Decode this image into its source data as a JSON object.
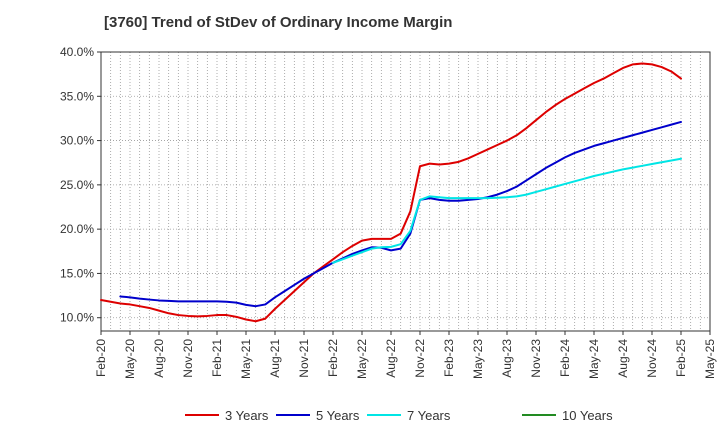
{
  "chart_data": {
    "type": "line",
    "title": "[3760]  Trend of StDev of Ordinary Income Margin",
    "xlabel": "",
    "ylabel": "",
    "ylim": [
      8.5,
      40.0
    ],
    "y_ticks": [
      "10.0%",
      "15.0%",
      "20.0%",
      "25.0%",
      "30.0%",
      "35.0%",
      "40.0%"
    ],
    "y_tick_values": [
      10,
      15,
      20,
      25,
      30,
      35,
      40
    ],
    "x_ticks": [
      "Feb-20",
      "May-20",
      "Aug-20",
      "Nov-20",
      "Feb-21",
      "May-21",
      "Aug-21",
      "Nov-21",
      "Feb-22",
      "May-22",
      "Aug-22",
      "Nov-22",
      "Feb-23",
      "May-23",
      "Aug-23",
      "Nov-23",
      "Feb-24",
      "May-24",
      "Aug-24",
      "Nov-24",
      "Feb-25",
      "May-25"
    ],
    "grid": true,
    "legend_position": "bottom",
    "series": [
      {
        "name": "3 Years",
        "color": "#dd0000",
        "x": [
          "Feb-20",
          "Mar-20",
          "Apr-20",
          "May-20",
          "Jun-20",
          "Jul-20",
          "Aug-20",
          "Sep-20",
          "Oct-20",
          "Nov-20",
          "Dec-20",
          "Jan-21",
          "Feb-21",
          "Mar-21",
          "Apr-21",
          "May-21",
          "Jun-21",
          "Jul-21",
          "Aug-21",
          "Sep-21",
          "Oct-21",
          "Nov-21",
          "Dec-21",
          "Jan-22",
          "Feb-22",
          "Mar-22",
          "Apr-22",
          "May-22",
          "Jun-22",
          "Jul-22",
          "Aug-22",
          "Sep-22",
          "Oct-22",
          "Nov-22",
          "Dec-22",
          "Jan-23",
          "Feb-23",
          "Mar-23",
          "Apr-23",
          "May-23",
          "Jun-23",
          "Jul-23",
          "Aug-23",
          "Sep-23",
          "Oct-23",
          "Nov-23",
          "Dec-23",
          "Jan-24",
          "Feb-24",
          "Mar-24",
          "Apr-24",
          "May-24",
          "Jun-24",
          "Jul-24",
          "Aug-24",
          "Sep-24",
          "Oct-24",
          "Nov-24",
          "Dec-24",
          "Jan-25",
          "Feb-25"
        ],
        "values": [
          12.0,
          11.8,
          11.6,
          11.5,
          11.3,
          11.1,
          10.8,
          10.5,
          10.3,
          10.2,
          10.15,
          10.2,
          10.3,
          10.3,
          10.1,
          9.8,
          9.6,
          9.9,
          11.0,
          12.0,
          13.0,
          14.0,
          15.0,
          15.8,
          16.6,
          17.4,
          18.1,
          18.7,
          18.9,
          18.9,
          18.9,
          19.5,
          22.0,
          27.1,
          27.4,
          27.3,
          27.4,
          27.6,
          28.0,
          28.5,
          29.0,
          29.5,
          30.0,
          30.6,
          31.4,
          32.3,
          33.2,
          34.0,
          34.7,
          35.3,
          35.9,
          36.5,
          37.0,
          37.6,
          38.2,
          38.6,
          38.7,
          38.6,
          38.3,
          37.8,
          37.0
        ]
      },
      {
        "name": "5 Years",
        "color": "#0000cc",
        "x": [
          "Apr-20",
          "May-20",
          "Jun-20",
          "Jul-20",
          "Aug-20",
          "Sep-20",
          "Oct-20",
          "Nov-20",
          "Dec-20",
          "Jan-21",
          "Feb-21",
          "Mar-21",
          "Apr-21",
          "May-21",
          "Jun-21",
          "Jul-21",
          "Aug-21",
          "Sep-21",
          "Oct-21",
          "Nov-21",
          "Dec-21",
          "Jan-22",
          "Feb-22",
          "Mar-22",
          "Apr-22",
          "May-22",
          "Jun-22",
          "Jul-22",
          "Aug-22",
          "Sep-22",
          "Oct-22",
          "Nov-22",
          "Dec-22",
          "Jan-23",
          "Feb-23",
          "Mar-23",
          "Apr-23",
          "May-23",
          "Jun-23",
          "Jul-23",
          "Aug-23",
          "Sep-23",
          "Oct-23",
          "Nov-23",
          "Dec-23",
          "Jan-24",
          "Feb-24",
          "Mar-24",
          "Apr-24",
          "May-24",
          "Jun-24",
          "Jul-24",
          "Aug-24",
          "Sep-24",
          "Oct-24",
          "Nov-24",
          "Dec-24",
          "Jan-25",
          "Feb-25"
        ],
        "values": [
          12.4,
          12.3,
          12.15,
          12.05,
          11.95,
          11.9,
          11.85,
          11.85,
          11.85,
          11.85,
          11.85,
          11.8,
          11.7,
          11.45,
          11.3,
          11.5,
          12.3,
          13.0,
          13.7,
          14.4,
          15.0,
          15.6,
          16.2,
          16.7,
          17.2,
          17.6,
          17.95,
          17.9,
          17.6,
          17.8,
          19.5,
          23.3,
          23.5,
          23.3,
          23.2,
          23.2,
          23.3,
          23.4,
          23.6,
          23.9,
          24.3,
          24.8,
          25.5,
          26.2,
          26.9,
          27.5,
          28.1,
          28.6,
          29.0,
          29.4,
          29.7,
          30.0,
          30.3,
          30.6,
          30.9,
          31.2,
          31.5,
          31.8,
          32.1
        ]
      },
      {
        "name": "7 Years",
        "color": "#00e5e5",
        "x": [
          "Feb-22",
          "Mar-22",
          "Apr-22",
          "May-22",
          "Jun-22",
          "Jul-22",
          "Aug-22",
          "Sep-22",
          "Oct-22",
          "Nov-22",
          "Dec-22",
          "Jan-23",
          "Feb-23",
          "Mar-23",
          "Apr-23",
          "May-23",
          "Jun-23",
          "Jul-23",
          "Aug-23",
          "Sep-23",
          "Oct-23",
          "Nov-23",
          "Dec-23",
          "Jan-24",
          "Feb-24",
          "Mar-24",
          "Apr-24",
          "May-24",
          "Jun-24",
          "Jul-24",
          "Aug-24",
          "Sep-24",
          "Oct-24",
          "Nov-24",
          "Dec-24",
          "Jan-25",
          "Feb-25"
        ],
        "values": [
          16.2,
          16.6,
          17.0,
          17.4,
          17.8,
          17.95,
          18.0,
          18.3,
          19.8,
          23.3,
          23.7,
          23.6,
          23.5,
          23.5,
          23.5,
          23.5,
          23.5,
          23.55,
          23.6,
          23.7,
          23.9,
          24.2,
          24.5,
          24.8,
          25.1,
          25.4,
          25.7,
          26.0,
          26.25,
          26.5,
          26.75,
          26.95,
          27.15,
          27.35,
          27.55,
          27.75,
          27.95
        ]
      },
      {
        "name": "10 Years",
        "color": "#228b22",
        "x": [],
        "values": []
      }
    ]
  }
}
